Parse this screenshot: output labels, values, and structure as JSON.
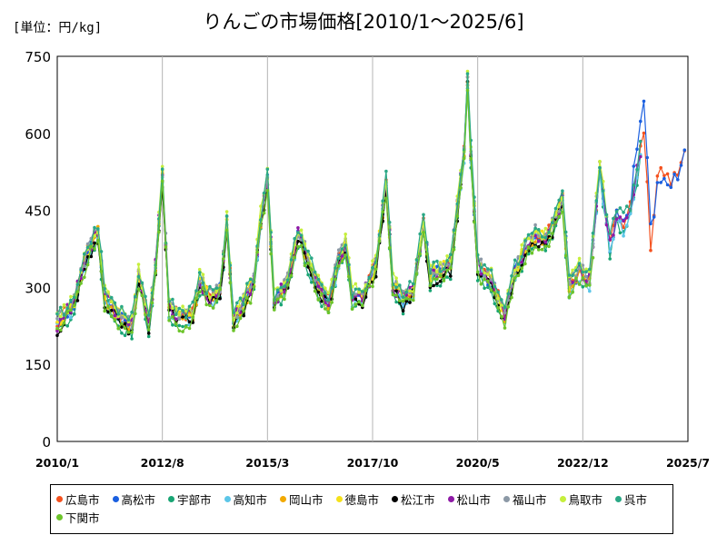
{
  "title": "りんごの市場価格[2010/1～2025/6]",
  "unit_label": "[単位：円/kg]",
  "chart_data": {
    "type": "line",
    "title": "りんごの市場価格[2010/1～2025/6]",
    "unit": "円/kg",
    "x_tick_labels": [
      "2010/1",
      "2012/8",
      "2015/3",
      "2017/10",
      "2020/5",
      "2022/12",
      "2025/7"
    ],
    "x_range": [
      "2010-01",
      "2025-07"
    ],
    "ylim": [
      0,
      750
    ],
    "y_ticks": [
      0,
      150,
      300,
      450,
      600,
      750
    ],
    "grid": "vertical",
    "legend_position": "bottom",
    "series_names": [
      "広島市",
      "高松市",
      "宇部市",
      "高知市",
      "岡山市",
      "徳島市",
      "松江市",
      "松山市",
      "福山市",
      "鳥取市",
      "呉市",
      "下関市"
    ],
    "colors": [
      "#f4511e",
      "#1a5fe0",
      "#19a574",
      "#5cc6e8",
      "#f2a900",
      "#f5e11a",
      "#000000",
      "#8e1aa6",
      "#8c99a6",
      "#c6ef3c",
      "#2aa886",
      "#6cc42a"
    ],
    "anchors_base": [
      [
        "2010-01",
        225
      ],
      [
        "2010-06",
        270
      ],
      [
        "2010-10",
        370
      ],
      [
        "2011-01",
        405
      ],
      [
        "2011-03",
        280
      ],
      [
        "2011-07",
        240
      ],
      [
        "2011-11",
        225
      ],
      [
        "2012-01",
        320
      ],
      [
        "2012-04",
        230
      ],
      [
        "2012-06",
        340
      ],
      [
        "2012-08",
        510
      ],
      [
        "2012-10",
        260
      ],
      [
        "2013-01",
        235
      ],
      [
        "2013-05",
        245
      ],
      [
        "2013-07",
        310
      ],
      [
        "2013-10",
        275
      ],
      [
        "2014-01",
        295
      ],
      [
        "2014-03",
        420
      ],
      [
        "2014-05",
        235
      ],
      [
        "2014-08",
        265
      ],
      [
        "2014-11",
        310
      ],
      [
        "2015-01",
        430
      ],
      [
        "2015-03",
        510
      ],
      [
        "2015-05",
        270
      ],
      [
        "2015-09",
        310
      ],
      [
        "2015-12",
        400
      ],
      [
        "2016-03",
        350
      ],
      [
        "2016-06",
        300
      ],
      [
        "2016-09",
        270
      ],
      [
        "2016-12",
        350
      ],
      [
        "2017-02",
        380
      ],
      [
        "2017-04",
        280
      ],
      [
        "2017-07",
        280
      ],
      [
        "2017-11",
        340
      ],
      [
        "2018-02",
        500
      ],
      [
        "2018-04",
        300
      ],
      [
        "2018-07",
        275
      ],
      [
        "2018-10",
        290
      ],
      [
        "2019-01",
        420
      ],
      [
        "2019-03",
        320
      ],
      [
        "2019-06",
        330
      ],
      [
        "2019-09",
        340
      ],
      [
        "2020-01",
        560
      ],
      [
        "2020-02",
        700
      ],
      [
        "2020-03",
        560
      ],
      [
        "2020-05",
        340
      ],
      [
        "2020-09",
        310
      ],
      [
        "2021-01",
        245
      ],
      [
        "2021-04",
        330
      ],
      [
        "2021-07",
        370
      ],
      [
        "2021-10",
        400
      ],
      [
        "2022-01",
        390
      ],
      [
        "2022-04",
        430
      ],
      [
        "2022-06",
        470
      ],
      [
        "2022-08",
        300
      ],
      [
        "2022-11",
        330
      ],
      [
        "2023-02",
        310
      ],
      [
        "2023-05",
        530
      ],
      [
        "2023-08",
        380
      ],
      [
        "2023-10",
        440
      ],
      [
        "2023-12",
        420
      ],
      [
        "2024-02",
        450
      ],
      [
        "2024-04",
        520
      ],
      [
        "2024-06",
        600
      ],
      [
        "2024-08",
        375
      ],
      [
        "2024-10",
        510
      ],
      [
        "2024-12",
        520
      ],
      [
        "2025-02",
        500
      ],
      [
        "2025-04",
        520
      ],
      [
        "2025-06",
        555
      ]
    ]
  },
  "legend": {
    "items": [
      {
        "label": "広島市",
        "color": "#f4511e"
      },
      {
        "label": "高松市",
        "color": "#1a5fe0"
      },
      {
        "label": "宇部市",
        "color": "#19a574"
      },
      {
        "label": "高知市",
        "color": "#5cc6e8"
      },
      {
        "label": "岡山市",
        "color": "#f2a900"
      },
      {
        "label": "徳島市",
        "color": "#f5e11a"
      },
      {
        "label": "松江市",
        "color": "#000000"
      },
      {
        "label": "松山市",
        "color": "#8e1aa6"
      },
      {
        "label": "福山市",
        "color": "#8c99a6"
      },
      {
        "label": "鳥取市",
        "color": "#c6ef3c"
      },
      {
        "label": "呉市",
        "color": "#2aa886"
      },
      {
        "label": "下関市",
        "color": "#6cc42a"
      }
    ]
  }
}
